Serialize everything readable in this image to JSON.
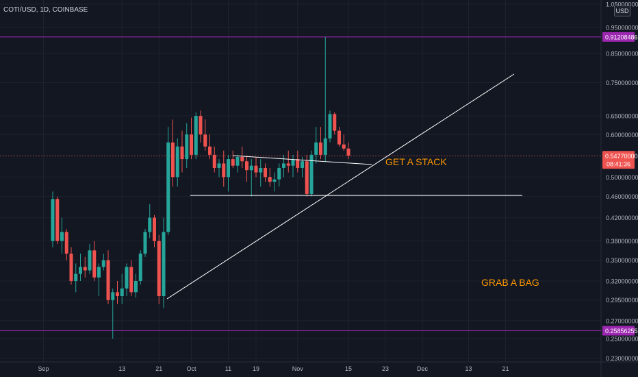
{
  "header": {
    "symbol_label": "COTI/USD, 1D, COINBASE",
    "currency_badge": "USD"
  },
  "colors": {
    "background": "#131722",
    "grid": "#1e222d",
    "up": "#26a69a",
    "down": "#ef5350",
    "level_line": "#9c27b0",
    "annotation": "#ff9800",
    "trendline": "#ffffff",
    "price_badge": "#ef5350"
  },
  "chart_data": {
    "type": "candlestick",
    "price_axis": {
      "ticks": [
        1.05,
        0.95,
        0.85,
        0.75,
        0.65,
        0.6,
        0.5,
        0.46,
        0.42,
        0.38,
        0.35,
        0.32,
        0.295,
        0.27,
        0.25,
        0.23
      ],
      "tick_labels": [
        "1.05000000",
        "0.95000000",
        "0.85000000",
        "0.75000000",
        "0.65000000",
        "0.60000000",
        "0.50000000",
        "0.46000000",
        "0.42000000",
        "0.38000000",
        "0.35000000",
        "0.32000000",
        "0.29500000",
        "0.27000000",
        "0.25000000",
        "0.23000000"
      ],
      "scale": "log"
    },
    "time_axis": {
      "tick_labels": [
        "Sep",
        "13",
        "21",
        "Oct",
        "11",
        "19",
        "Nov",
        "15",
        "23",
        "Dec",
        "13",
        "21"
      ],
      "tick_bar_index": [
        -2,
        15,
        23,
        30,
        38,
        44,
        53,
        64,
        72,
        80,
        90,
        98
      ]
    },
    "candles": [
      {
        "o": 0.38,
        "h": 0.47,
        "l": 0.37,
        "c": 0.455
      },
      {
        "o": 0.455,
        "h": 0.46,
        "l": 0.375,
        "c": 0.38
      },
      {
        "o": 0.38,
        "h": 0.42,
        "l": 0.36,
        "c": 0.395
      },
      {
        "o": 0.395,
        "h": 0.4,
        "l": 0.35,
        "c": 0.36
      },
      {
        "o": 0.36,
        "h": 0.37,
        "l": 0.315,
        "c": 0.32
      },
      {
        "o": 0.32,
        "h": 0.345,
        "l": 0.305,
        "c": 0.33
      },
      {
        "o": 0.33,
        "h": 0.36,
        "l": 0.32,
        "c": 0.34
      },
      {
        "o": 0.34,
        "h": 0.355,
        "l": 0.325,
        "c": 0.335
      },
      {
        "o": 0.335,
        "h": 0.375,
        "l": 0.33,
        "c": 0.365
      },
      {
        "o": 0.365,
        "h": 0.38,
        "l": 0.32,
        "c": 0.325
      },
      {
        "o": 0.325,
        "h": 0.345,
        "l": 0.3,
        "c": 0.34
      },
      {
        "o": 0.34,
        "h": 0.36,
        "l": 0.335,
        "c": 0.35
      },
      {
        "o": 0.35,
        "h": 0.365,
        "l": 0.29,
        "c": 0.295
      },
      {
        "o": 0.295,
        "h": 0.31,
        "l": 0.25,
        "c": 0.305
      },
      {
        "o": 0.305,
        "h": 0.32,
        "l": 0.29,
        "c": 0.3
      },
      {
        "o": 0.3,
        "h": 0.33,
        "l": 0.29,
        "c": 0.31
      },
      {
        "o": 0.31,
        "h": 0.345,
        "l": 0.3,
        "c": 0.34
      },
      {
        "o": 0.34,
        "h": 0.35,
        "l": 0.3,
        "c": 0.305
      },
      {
        "o": 0.305,
        "h": 0.33,
        "l": 0.298,
        "c": 0.32
      },
      {
        "o": 0.32,
        "h": 0.365,
        "l": 0.315,
        "c": 0.36
      },
      {
        "o": 0.36,
        "h": 0.4,
        "l": 0.355,
        "c": 0.395
      },
      {
        "o": 0.395,
        "h": 0.445,
        "l": 0.385,
        "c": 0.42
      },
      {
        "o": 0.42,
        "h": 0.425,
        "l": 0.37,
        "c": 0.38
      },
      {
        "o": 0.38,
        "h": 0.39,
        "l": 0.29,
        "c": 0.3
      },
      {
        "o": 0.3,
        "h": 0.42,
        "l": 0.285,
        "c": 0.395
      },
      {
        "o": 0.395,
        "h": 0.62,
        "l": 0.39,
        "c": 0.58
      },
      {
        "o": 0.58,
        "h": 0.64,
        "l": 0.48,
        "c": 0.5
      },
      {
        "o": 0.5,
        "h": 0.59,
        "l": 0.48,
        "c": 0.57
      },
      {
        "o": 0.57,
        "h": 0.61,
        "l": 0.51,
        "c": 0.54
      },
      {
        "o": 0.54,
        "h": 0.63,
        "l": 0.52,
        "c": 0.6
      },
      {
        "o": 0.6,
        "h": 0.645,
        "l": 0.54,
        "c": 0.55
      },
      {
        "o": 0.55,
        "h": 0.66,
        "l": 0.54,
        "c": 0.65
      },
      {
        "o": 0.65,
        "h": 0.665,
        "l": 0.58,
        "c": 0.6
      },
      {
        "o": 0.6,
        "h": 0.64,
        "l": 0.56,
        "c": 0.57
      },
      {
        "o": 0.57,
        "h": 0.6,
        "l": 0.54,
        "c": 0.55
      },
      {
        "o": 0.55,
        "h": 0.57,
        "l": 0.51,
        "c": 0.52
      },
      {
        "o": 0.52,
        "h": 0.54,
        "l": 0.5,
        "c": 0.53
      },
      {
        "o": 0.53,
        "h": 0.56,
        "l": 0.48,
        "c": 0.5
      },
      {
        "o": 0.5,
        "h": 0.55,
        "l": 0.47,
        "c": 0.54
      },
      {
        "o": 0.54,
        "h": 0.56,
        "l": 0.52,
        "c": 0.525
      },
      {
        "o": 0.525,
        "h": 0.55,
        "l": 0.51,
        "c": 0.545
      },
      {
        "o": 0.545,
        "h": 0.57,
        "l": 0.52,
        "c": 0.535
      },
      {
        "o": 0.535,
        "h": 0.545,
        "l": 0.49,
        "c": 0.515
      },
      {
        "o": 0.515,
        "h": 0.54,
        "l": 0.46,
        "c": 0.525
      },
      {
        "o": 0.525,
        "h": 0.545,
        "l": 0.5,
        "c": 0.51
      },
      {
        "o": 0.51,
        "h": 0.54,
        "l": 0.48,
        "c": 0.52
      },
      {
        "o": 0.52,
        "h": 0.53,
        "l": 0.49,
        "c": 0.5
      },
      {
        "o": 0.5,
        "h": 0.52,
        "l": 0.48,
        "c": 0.49
      },
      {
        "o": 0.49,
        "h": 0.51,
        "l": 0.47,
        "c": 0.495
      },
      {
        "o": 0.495,
        "h": 0.53,
        "l": 0.48,
        "c": 0.52
      },
      {
        "o": 0.52,
        "h": 0.55,
        "l": 0.5,
        "c": 0.53
      },
      {
        "o": 0.53,
        "h": 0.56,
        "l": 0.51,
        "c": 0.525
      },
      {
        "o": 0.525,
        "h": 0.55,
        "l": 0.5,
        "c": 0.54
      },
      {
        "o": 0.54,
        "h": 0.56,
        "l": 0.51,
        "c": 0.52
      },
      {
        "o": 0.52,
        "h": 0.545,
        "l": 0.5,
        "c": 0.535
      },
      {
        "o": 0.535,
        "h": 0.55,
        "l": 0.46,
        "c": 0.465
      },
      {
        "o": 0.465,
        "h": 0.56,
        "l": 0.46,
        "c": 0.55
      },
      {
        "o": 0.55,
        "h": 0.62,
        "l": 0.53,
        "c": 0.58
      },
      {
        "o": 0.58,
        "h": 0.62,
        "l": 0.54,
        "c": 0.55
      },
      {
        "o": 0.55,
        "h": 0.912,
        "l": 0.535,
        "c": 0.59
      },
      {
        "o": 0.59,
        "h": 0.665,
        "l": 0.58,
        "c": 0.655
      },
      {
        "o": 0.655,
        "h": 0.66,
        "l": 0.6,
        "c": 0.61
      },
      {
        "o": 0.61,
        "h": 0.62,
        "l": 0.57,
        "c": 0.575
      },
      {
        "o": 0.575,
        "h": 0.6,
        "l": 0.56,
        "c": 0.565
      },
      {
        "o": 0.565,
        "h": 0.58,
        "l": 0.54,
        "c": 0.548
      }
    ],
    "levels": [
      {
        "price": 0.91208486,
        "label": "0.91208486"
      },
      {
        "price": 0.25856255,
        "label": "0.25856255"
      }
    ],
    "horizontal_support": 0.462,
    "current_price": {
      "value": 0.5477,
      "label": "0.54770000",
      "countdown": "08:41:36"
    },
    "annotations": [
      {
        "text": "GET A STACK"
      },
      {
        "text": "GRAB A BAG"
      }
    ]
  }
}
